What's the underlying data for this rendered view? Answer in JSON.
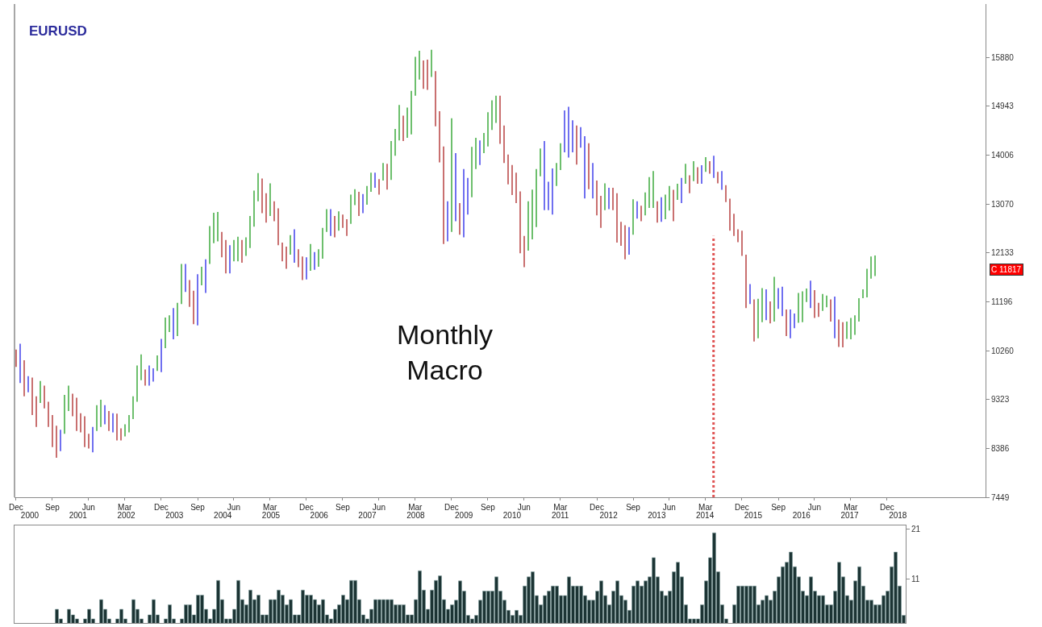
{
  "chart_data": [
    {
      "type": "bar",
      "title": "EURUSD",
      "annotations": [
        "Monthly Macro",
        "C 11817"
      ],
      "x": [
        "2000-12",
        "2001-01",
        "2001-02",
        "2001-03",
        "2001-04",
        "2001-05",
        "2001-06",
        "2001-07",
        "2001-08",
        "2001-09",
        "2001-10",
        "2001-11",
        "2001-12",
        "2002-01",
        "2002-02",
        "2002-03",
        "2002-04",
        "2002-05",
        "2002-06",
        "2002-07",
        "2002-08",
        "2002-09",
        "2002-10",
        "2002-11",
        "2002-12",
        "2003-01",
        "2003-02",
        "2003-03",
        "2003-04",
        "2003-05",
        "2003-06",
        "2003-07",
        "2003-08",
        "2003-09",
        "2003-10",
        "2003-11",
        "2003-12",
        "2004-01",
        "2004-02",
        "2004-03",
        "2004-04",
        "2004-05",
        "2004-06",
        "2004-07",
        "2004-08",
        "2004-09",
        "2004-10",
        "2004-11",
        "2004-12",
        "2005-01",
        "2005-02",
        "2005-03",
        "2005-04",
        "2005-05",
        "2005-06",
        "2005-07",
        "2005-08",
        "2005-09",
        "2005-10",
        "2005-11",
        "2005-12",
        "2006-01",
        "2006-02",
        "2006-03",
        "2006-04",
        "2006-05",
        "2006-06",
        "2006-07",
        "2006-08",
        "2006-09",
        "2006-10",
        "2006-11",
        "2006-12",
        "2007-01",
        "2007-02",
        "2007-03",
        "2007-04",
        "2007-05",
        "2007-06",
        "2007-07",
        "2007-08",
        "2007-09",
        "2007-10",
        "2007-11",
        "2007-12",
        "2008-01",
        "2008-02",
        "2008-03",
        "2008-04",
        "2008-05",
        "2008-06",
        "2008-07",
        "2008-08",
        "2008-09",
        "2008-10",
        "2008-11",
        "2008-12",
        "2009-01",
        "2009-02",
        "2009-03",
        "2009-04",
        "2009-05",
        "2009-06",
        "2009-07",
        "2009-08",
        "2009-09",
        "2009-10",
        "2009-11",
        "2009-12",
        "2010-01",
        "2010-02",
        "2010-03",
        "2010-04",
        "2010-05",
        "2010-06",
        "2010-07",
        "2010-08",
        "2010-09",
        "2010-10",
        "2010-11",
        "2010-12",
        "2011-01",
        "2011-02",
        "2011-03",
        "2011-04",
        "2011-05",
        "2011-06",
        "2011-07",
        "2011-08",
        "2011-09",
        "2011-10",
        "2011-11",
        "2011-12",
        "2012-01",
        "2012-02",
        "2012-03",
        "2012-04",
        "2012-05",
        "2012-06",
        "2012-07",
        "2012-08",
        "2012-09",
        "2012-10",
        "2012-11",
        "2012-12",
        "2013-01",
        "2013-02",
        "2013-03",
        "2013-04",
        "2013-05",
        "2013-06",
        "2013-07",
        "2013-08",
        "2013-09",
        "2013-10",
        "2013-11",
        "2013-12",
        "2014-01",
        "2014-02",
        "2014-03",
        "2014-04",
        "2014-05",
        "2014-06",
        "2014-07",
        "2014-08",
        "2014-09",
        "2014-10",
        "2014-11",
        "2014-12",
        "2015-01",
        "2015-02",
        "2015-03",
        "2015-04",
        "2015-05",
        "2015-06",
        "2015-07",
        "2015-08",
        "2015-09",
        "2015-10",
        "2015-11",
        "2015-12",
        "2016-01",
        "2016-02",
        "2016-03",
        "2016-04",
        "2016-05",
        "2016-06",
        "2016-07",
        "2016-08",
        "2016-09",
        "2016-10",
        "2016-11",
        "2016-12",
        "2017-01",
        "2017-02",
        "2017-03",
        "2017-04",
        "2017-05",
        "2017-06",
        "2017-07",
        "2017-08",
        "2017-09",
        "2017-10",
        "2017-11",
        "2017-12",
        "2018-01",
        "2018-02",
        "2018-03",
        "2018-04",
        "2018-05",
        "2018-06",
        "2018-07",
        "2018-08",
        "2018-09"
      ],
      "base": [
        9948,
        9641,
        9385,
        9462,
        9026,
        8796,
        9257,
        9154,
        8796,
        8412,
        8207,
        8335,
        8668,
        9103,
        9001,
        8719,
        8694,
        8412,
        8386,
        8310,
        8719,
        8796,
        8847,
        8719,
        8694,
        8540,
        8540,
        8617,
        8694,
        8950,
        9282,
        9692,
        9590,
        9590,
        9666,
        9871,
        9846,
        10306,
        10614,
        10475,
        10537,
        11151,
        11382,
        11100,
        10767,
        10742,
        11510,
        11366,
        11919,
        12319,
        12354,
        12047,
        11740,
        11740,
        11970,
        11970,
        11945,
        12073,
        12226,
        12636,
        13122,
        12892,
        12713,
        12841,
        12738,
        12278,
        11970,
        11827,
        12098,
        11945,
        11858,
        11612,
        11622,
        11791,
        11807,
        11868,
        12022,
        12534,
        12457,
        12431,
        12559,
        12610,
        12457,
        12687,
        13046,
        12841,
        12892,
        13056,
        13302,
        13378,
        13250,
        13517,
        13343,
        13532,
        13993,
        14285,
        14274,
        14336,
        14402,
        15145,
        15452,
        15273,
        15257,
        15503,
        14556,
        13865,
        12303,
        12354,
        12534,
        12738,
        12482,
        12431,
        12866,
        13199,
        13737,
        13814,
        14044,
        14172,
        14489,
        14623,
        14223,
        13855,
        13445,
        13240,
        13087,
        12124,
        11858,
        12175,
        12390,
        12626,
        13599,
        12953,
        12953,
        12866,
        13414,
        13721,
        14059,
        13957,
        14059,
        13824,
        14146,
        13174,
        13353,
        13174,
        12851,
        12610,
        12953,
        12969,
        12953,
        12329,
        12267,
        12011,
        12098,
        12482,
        12790,
        12738,
        12851,
        12994,
        12994,
        12713,
        12728,
        12779,
        12943,
        12738,
        13148,
        13086,
        13455,
        13276,
        13506,
        13455,
        13455,
        13685,
        13650,
        13568,
        13465,
        13342,
        13107,
        12559,
        12457,
        12339,
        12073,
        11074,
        11151,
        10434,
        10496,
        10803,
        10844,
        10782,
        10818,
        11059,
        10921,
        10537,
        10496,
        10690,
        10793,
        10803,
        11192,
        11074,
        10885,
        10905,
        11023,
        11090,
        10818,
        10496,
        10332,
        10322,
        10485,
        10475,
        10562,
        10818,
        11264,
        11279,
        11637,
        11689
      ],
      "values": [
        333,
        752,
        691,
        307,
        717,
        589,
        420,
        436,
        486,
        614,
        615,
        410,
        742,
        487,
        435,
        640,
        368,
        589,
        282,
        486,
        497,
        522,
        369,
        384,
        368,
        512,
        230,
        230,
        332,
        435,
        692,
        497,
        307,
        384,
        256,
        297,
        640,
        589,
        322,
        599,
        640,
        768,
        537,
        512,
        640,
        983,
        358,
        645,
        727,
        583,
        563,
        487,
        640,
        538,
        410,
        471,
        435,
        358,
        615,
        691,
        538,
        666,
        563,
        624,
        384,
        706,
        359,
        425,
        374,
        640,
        343,
        451,
        425,
        512,
        343,
        333,
        588,
        435,
        512,
        410,
        369,
        256,
        322,
        563,
        307,
        461,
        369,
        358,
        368,
        292,
        297,
        338,
        496,
        742,
        512,
        681,
        487,
        578,
        835,
        742,
        553,
        548,
        579,
        522,
        1060,
        983,
        1869,
        768,
        2176,
        1306,
        605,
        1306,
        702,
        963,
        599,
        471,
        384,
        655,
        564,
        522,
        922,
        716,
        573,
        574,
        583,
        1188,
        599,
        947,
        953,
        1111,
        532,
        1321,
        543,
        886,
        441,
        512,
        804,
        973,
        615,
        747,
        395,
        1193,
        880,
        681,
        666,
        615,
        512,
        409,
        425,
        947,
        461,
        651,
        528,
        676,
        332,
        297,
        440,
        589,
        707,
        409,
        471,
        471,
        471,
        604,
        307,
        482,
        384,
        343,
        384,
        317,
        358,
        282,
        240,
        425,
        220,
        359,
        322,
        614,
        425,
        246,
        486,
        1024,
        384,
        809,
        757,
        655,
        589,
        420,
        855,
        399,
        563,
        512,
        553,
        282,
        573,
        594,
        256,
        528,
        532,
        272,
        323,
        225,
        425,
        798,
        522,
        481,
        333,
        410,
        374,
        446,
        169,
        548,
        425,
        394
      ],
      "colors": [
        "#c97070",
        "#7070f0",
        "#c97070",
        "#7070f0",
        "#c97070",
        "#c97070",
        "#6dbf6d",
        "#c97070",
        "#c97070",
        "#c97070",
        "#c97070",
        "#7070f0",
        "#6dbf6d",
        "#6dbf6d",
        "#c97070",
        "#c97070",
        "#c97070",
        "#c97070",
        "#c97070",
        "#7070f0",
        "#6dbf6d",
        "#6dbf6d",
        "#7070f0",
        "#c97070",
        "#7070f0",
        "#c97070",
        "#c97070",
        "#6dbf6d",
        "#6dbf6d",
        "#6dbf6d",
        "#6dbf6d",
        "#6dbf6d",
        "#c97070",
        "#7070f0",
        "#7070f0",
        "#6dbf6d",
        "#7070f0",
        "#6dbf6d",
        "#6dbf6d",
        "#7070f0",
        "#6dbf6d",
        "#6dbf6d",
        "#7070f0",
        "#c97070",
        "#c97070",
        "#7070f0",
        "#6dbf6d",
        "#7070f0",
        "#6dbf6d",
        "#6dbf6d",
        "#6dbf6d",
        "#c97070",
        "#c97070",
        "#7070f0",
        "#6dbf6d",
        "#6dbf6d",
        "#c97070",
        "#6dbf6d",
        "#6dbf6d",
        "#6dbf6d",
        "#6dbf6d",
        "#c97070",
        "#c97070",
        "#6dbf6d",
        "#c97070",
        "#c97070",
        "#c97070",
        "#c97070",
        "#6dbf6d",
        "#7070f0",
        "#c97070",
        "#c97070",
        "#7070f0",
        "#6dbf6d",
        "#7070f0",
        "#6dbf6d",
        "#6dbf6d",
        "#6dbf6d",
        "#7070f0",
        "#c97070",
        "#6dbf6d",
        "#c97070",
        "#c97070",
        "#6dbf6d",
        "#6dbf6d",
        "#c97070",
        "#7070f0",
        "#6dbf6d",
        "#6dbf6d",
        "#7070f0",
        "#c97070",
        "#6dbf6d",
        "#c97070",
        "#6dbf6d",
        "#6dbf6d",
        "#6dbf6d",
        "#c97070",
        "#6dbf6d",
        "#6dbf6d",
        "#6dbf6d",
        "#6dbf6d",
        "#c97070",
        "#c97070",
        "#6dbf6d",
        "#c97070",
        "#c97070",
        "#c97070",
        "#7070f0",
        "#6dbf6d",
        "#7070f0",
        "#c97070",
        "#7070f0",
        "#7070f0",
        "#6dbf6d",
        "#6dbf6d",
        "#7070f0",
        "#6dbf6d",
        "#6dbf6d",
        "#6dbf6d",
        "#6dbf6d",
        "#c97070",
        "#c97070",
        "#c97070",
        "#c97070",
        "#c97070",
        "#c97070",
        "#c97070",
        "#6dbf6d",
        "#6dbf6d",
        "#6dbf6d",
        "#6dbf6d",
        "#7070f0",
        "#7070f0",
        "#7070f0",
        "#6dbf6d",
        "#6dbf6d",
        "#7070f0",
        "#7070f0",
        "#7070f0",
        "#c97070",
        "#7070f0",
        "#7070f0",
        "#c97070",
        "#7070f0",
        "#c97070",
        "#c97070",
        "#6dbf6d",
        "#7070f0",
        "#c97070",
        "#c97070",
        "#c97070",
        "#c97070",
        "#7070f0",
        "#6dbf6d",
        "#7070f0",
        "#c97070",
        "#6dbf6d",
        "#6dbf6d",
        "#6dbf6d",
        "#c97070",
        "#7070f0",
        "#6dbf6d",
        "#6dbf6d",
        "#c97070",
        "#6dbf6d",
        "#7070f0",
        "#6dbf6d",
        "#c97070",
        "#6dbf6d",
        "#c97070",
        "#7070f0",
        "#6dbf6d",
        "#c97070",
        "#7070f0",
        "#c97070",
        "#7070f0",
        "#c97070",
        "#c97070",
        "#c97070",
        "#c97070",
        "#c97070",
        "#c97070",
        "#7070f0",
        "#c97070",
        "#6dbf6d",
        "#6dbf6d",
        "#7070f0",
        "#c97070",
        "#6dbf6d",
        "#7070f0",
        "#7070f0",
        "#c97070",
        "#7070f0",
        "#7070f0",
        "#6dbf6d",
        "#6dbf6d",
        "#6dbf6d",
        "#7070f0",
        "#c97070",
        "#c97070",
        "#6dbf6d",
        "#6dbf6d",
        "#c97070",
        "#7070f0",
        "#c97070",
        "#c97070",
        "#6dbf6d",
        "#6dbf6d",
        "#6dbf6d",
        "#6dbf6d",
        "#6dbf6d",
        "#6dbf6d",
        "#6dbf6d",
        "#6dbf6d"
      ],
      "xlim": [
        "2000-11-19",
        "2020-12-13"
      ],
      "xticks": [
        {
          "value": "2000-12",
          "label": "Dec"
        },
        {
          "value": "2001-09",
          "label": "Sep"
        },
        {
          "value": "2002-06",
          "label": "Jun"
        },
        {
          "value": "2003-03",
          "label": "Mar"
        },
        {
          "value": "2003-12",
          "label": "Dec"
        },
        {
          "value": "2004-09",
          "label": "Sep"
        },
        {
          "value": "2005-06",
          "label": "Jun"
        },
        {
          "value": "2006-03",
          "label": "Mar"
        },
        {
          "value": "2006-12",
          "label": "Dec"
        },
        {
          "value": "2007-09",
          "label": "Sep"
        },
        {
          "value": "2008-06",
          "label": "Jun"
        },
        {
          "value": "2009-03",
          "label": "Mar"
        },
        {
          "value": "2009-12",
          "label": "Dec"
        },
        {
          "value": "2010-09",
          "label": "Sep"
        },
        {
          "value": "2011-06",
          "label": "Jun"
        },
        {
          "value": "2012-03",
          "label": "Mar"
        },
        {
          "value": "2012-12",
          "label": "Dec"
        },
        {
          "value": "2013-09",
          "label": "Sep"
        },
        {
          "value": "2014-06",
          "label": "Jun"
        },
        {
          "value": "2015-03",
          "label": "Mar"
        },
        {
          "value": "2015-12",
          "label": "Dec"
        },
        {
          "value": "2016-09",
          "label": "Sep"
        },
        {
          "value": "2017-06",
          "label": "Jun"
        },
        {
          "value": "2018-03",
          "label": "Mar"
        },
        {
          "value": "2018-12",
          "label": "Dec"
        }
      ],
      "x2lim": [
        "1999-12-07",
        "2020-01-25"
      ],
      "x2ticks": [
        {
          "value": "2000-04",
          "label": "2000"
        },
        {
          "value": "2001-04",
          "label": "2001"
        },
        {
          "value": "2002-04",
          "label": "2002"
        },
        {
          "value": "2003-04",
          "label": "2003"
        },
        {
          "value": "2004-04",
          "label": "2004"
        },
        {
          "value": "2005-04",
          "label": "2005"
        },
        {
          "value": "2006-04",
          "label": "2006"
        },
        {
          "value": "2007-04",
          "label": "2007"
        },
        {
          "value": "2008-04",
          "label": "2008"
        },
        {
          "value": "2009-04",
          "label": "2009"
        },
        {
          "value": "2010-04",
          "label": "2010"
        },
        {
          "value": "2011-04",
          "label": "2011"
        },
        {
          "value": "2012-04",
          "label": "2012"
        },
        {
          "value": "2013-04",
          "label": "2013"
        },
        {
          "value": "2014-04",
          "label": "2014"
        },
        {
          "value": "2015-04",
          "label": "2015"
        },
        {
          "value": "2016-04",
          "label": "2016"
        },
        {
          "value": "2017-04",
          "label": "2017"
        },
        {
          "value": "2018-04",
          "label": "2018"
        }
      ],
      "ylim": [
        7449,
        16900
      ],
      "yticks": [
        7449,
        8386,
        9323,
        10260,
        11196,
        12133,
        13070,
        14006,
        14943,
        15880
      ],
      "ref_lines": [
        {
          "axis": "x",
          "value": "2015-05",
          "color": "#e05555",
          "line_style": "dotted"
        }
      ]
    },
    {
      "type": "bar",
      "color": "#1c3434",
      "tick_labels": "y",
      "categories": [
        null,
        null,
        null,
        null,
        null,
        null,
        null,
        null,
        null,
        null,
        null,
        null,
        null,
        null,
        null,
        null,
        null,
        null,
        null,
        null,
        null,
        null,
        null,
        null,
        null,
        null,
        null,
        null,
        null,
        null,
        null,
        null,
        null,
        null,
        null,
        null,
        null,
        null,
        null,
        null,
        null,
        null,
        null,
        null,
        null,
        null,
        null,
        null,
        null,
        null,
        null,
        null,
        null,
        null,
        null,
        null,
        null,
        null,
        null,
        null,
        null,
        null,
        null,
        null,
        null,
        null,
        null,
        null,
        null,
        null,
        null,
        null,
        null,
        null,
        null,
        null,
        null,
        null,
        null,
        null,
        null,
        null,
        null,
        null,
        null,
        null,
        null,
        null,
        null,
        null,
        null,
        null,
        null,
        null,
        null,
        null,
        null,
        null,
        null,
        null,
        null,
        null,
        null,
        null,
        null,
        null,
        null,
        null,
        null,
        null,
        null,
        null,
        null,
        null,
        null,
        null,
        null,
        null,
        null,
        null,
        null,
        null,
        null,
        null,
        null,
        null,
        null,
        null,
        null,
        null,
        null,
        null,
        null,
        null,
        null,
        null,
        null,
        null,
        null,
        null,
        null,
        null,
        null,
        null,
        null,
        null,
        null,
        null,
        null,
        null,
        null,
        null,
        null,
        null,
        null,
        null,
        null,
        null,
        null,
        null,
        null,
        null,
        null,
        null,
        null,
        null,
        null,
        null,
        null,
        null,
        null,
        null,
        null,
        null,
        null,
        null,
        null,
        null,
        null,
        null,
        null,
        null,
        null,
        null,
        null,
        null,
        null,
        null,
        null,
        null,
        null,
        null,
        null,
        null,
        null,
        null,
        null,
        null,
        null,
        null,
        null,
        null,
        null,
        null,
        null,
        null,
        null,
        null,
        null,
        null,
        null,
        null,
        null,
        null,
        null,
        null,
        null,
        null,
        null,
        null,
        null
      ],
      "values": [
        null,
        null,
        null,
        null,
        null,
        null,
        null,
        null,
        null,
        null,
        5.1,
        3.2,
        null,
        5.1,
        4.0,
        3.2,
        null,
        3.2,
        5.1,
        3.2,
        null,
        7.0,
        5.1,
        3.2,
        null,
        3.2,
        5.1,
        3.2,
        null,
        7.0,
        5.1,
        3.2,
        null,
        4.0,
        7.0,
        4.0,
        null,
        3.2,
        6.0,
        3.2,
        null,
        3.2,
        6.0,
        6.0,
        4.0,
        7.9,
        7.9,
        5.1,
        3.2,
        5.1,
        10.8,
        7.0,
        3.2,
        3.2,
        5.1,
        10.8,
        7.0,
        6.0,
        8.9,
        7.0,
        7.9,
        4.0,
        4.0,
        7.0,
        7.0,
        8.9,
        7.9,
        6.0,
        7.0,
        4.0,
        4.0,
        8.9,
        7.9,
        7.9,
        7.0,
        6.0,
        7.0,
        4.0,
        3.2,
        5.1,
        6.0,
        7.9,
        7.0,
        10.8,
        10.8,
        7.0,
        4.0,
        3.2,
        5.1,
        7.0,
        7.0,
        7.0,
        7.0,
        7.0,
        6.0,
        6.0,
        6.0,
        4.0,
        4.0,
        7.0,
        12.7,
        8.9,
        5.1,
        8.9,
        10.8,
        11.7,
        7.0,
        5.1,
        6.0,
        6.9,
        10.7,
        8.7,
        3.9,
        3.2,
        3.9,
        6.9,
        8.7,
        8.7,
        8.7,
        11.5,
        8.7,
        6.9,
        4.9,
        3.9,
        4.9,
        3.9,
        9.7,
        11.5,
        12.5,
        7.8,
        6.0,
        7.8,
        8.7,
        9.7,
        9.7,
        7.8,
        7.8,
        11.5,
        9.7,
        9.7,
        9.7,
        7.8,
        6.9,
        6.9,
        8.7,
        10.7,
        7.8,
        6.0,
        8.7,
        10.7,
        7.8,
        6.9,
        4.9,
        9.7,
        10.7,
        9.7,
        10.7,
        11.5,
        15.3,
        11.5,
        8.7,
        7.8,
        8.7,
        12.5,
        14.4,
        11.5,
        6.0,
        3.2,
        3.2,
        3.2,
        6.0,
        10.7,
        15.3,
        20.2,
        12.5,
        6.0,
        3.2,
        null,
        6.0,
        9.7,
        9.7,
        9.7,
        9.7,
        9.7,
        6.0,
        6.9,
        7.8,
        6.9,
        8.7,
        11.5,
        13.5,
        14.4,
        16.4,
        13.5,
        11.5,
        8.7,
        7.8,
        11.5,
        8.7,
        7.8,
        7.8,
        6.0,
        6.0,
        8.7,
        14.4,
        11.5,
        7.8,
        6.9,
        10.7,
        13.5,
        9.7,
        6.9,
        6.9,
        6.0,
        6.0,
        7.8,
        8.7,
        13.5,
        16.4,
        9.7,
        3.9
      ],
      "ylim": [
        2.4,
        21.6
      ],
      "yticks": [
        11,
        21
      ]
    }
  ]
}
